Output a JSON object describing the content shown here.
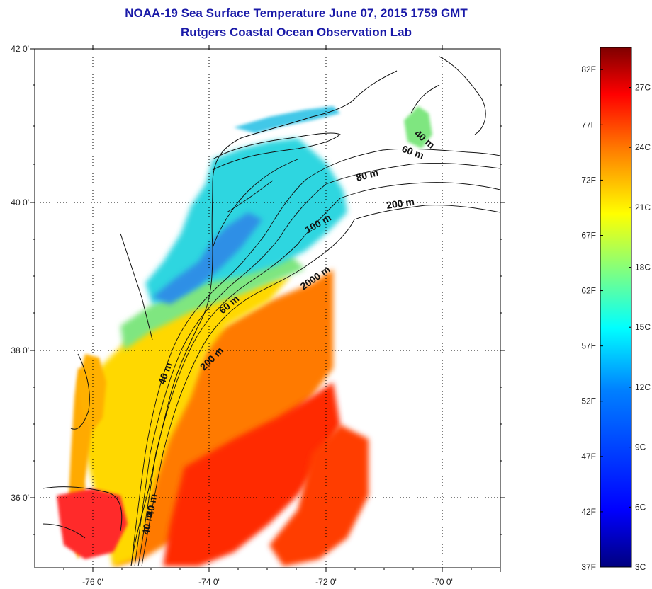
{
  "header": {
    "title": "NOAA-19 Sea Surface Temperature June 07, 2015 1759 GMT",
    "subtitle": "Rutgers Coastal Ocean Observation Lab"
  },
  "axes": {
    "lat_labels": [
      "42 0'",
      "40 0'",
      "38 0'",
      "36 0'"
    ],
    "lon_labels": [
      "-76 0'",
      "-74 0'",
      "-72 0'",
      "-70 0'"
    ],
    "grid": true
  },
  "colorbar": {
    "range_F": [
      37,
      84
    ],
    "range_C": [
      3,
      29
    ],
    "fahrenheit_labels": [
      "82F",
      "77F",
      "72F",
      "67F",
      "62F",
      "57F",
      "52F",
      "47F",
      "42F",
      "37F"
    ],
    "celsius_labels": [
      "27C",
      "24C",
      "21C",
      "18C",
      "15C",
      "12C",
      "9C",
      "6C",
      "3C"
    ],
    "colors": [
      "#00007f",
      "#0000ff",
      "#0080ff",
      "#00ffff",
      "#80ff80",
      "#ffff00",
      "#ff8000",
      "#ff0000",
      "#7f0000"
    ]
  },
  "contour_labels": [
    "40 m",
    "60 m",
    "80 m",
    "200 m",
    "100 m",
    "2000 m",
    "60 m",
    "200 m",
    "40 m",
    "40 m",
    "40 m"
  ]
}
